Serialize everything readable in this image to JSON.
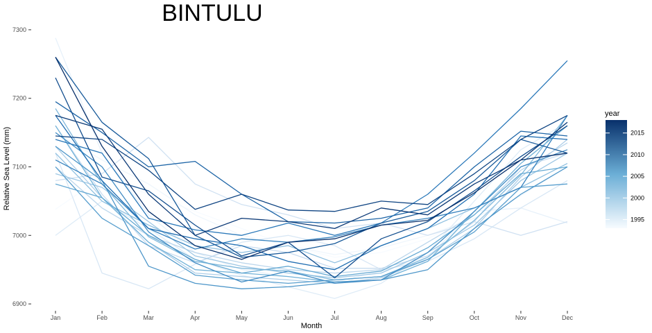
{
  "chart_data": {
    "type": "line",
    "title": "BINTULU",
    "xlabel": "Month",
    "ylabel": "Relative Sea Level (mm)",
    "categories": [
      "Jan",
      "Feb",
      "Mar",
      "Apr",
      "May",
      "Jun",
      "Jul",
      "Aug",
      "Sep",
      "Oct",
      "Nov",
      "Dec"
    ],
    "yticks": [
      6900,
      7000,
      7100,
      7200,
      7300
    ],
    "ylim": [
      6893,
      7308
    ],
    "grid": false,
    "legend": {
      "title": "year",
      "position": "right",
      "type": "colorbar",
      "range": [
        1993,
        2018
      ],
      "ticks": [
        1995,
        2000,
        2005,
        2010,
        2015
      ],
      "color_low": "#f7fbff",
      "color_high": "#08306b"
    },
    "series": [
      {
        "year": 1993,
        "values": [
          7038,
          7085,
          7060,
          7035,
          7010,
          6985,
          6968,
          6975,
          6995,
          7030,
          7080,
          7120
        ]
      },
      {
        "year": 1994,
        "values": [
          7150,
          7110,
          7075,
          7030,
          7000,
          6985,
          6972,
          6982,
          7000,
          7025,
          7058,
          7100
        ]
      },
      {
        "year": 1995,
        "values": [
          7288,
          7120,
          7030,
          6975,
          6950,
          6940,
          6932,
          6948,
          6968,
          7035,
          7040,
          7018
        ]
      },
      {
        "year": 1996,
        "values": [
          7000,
          7050,
          7010,
          6965,
          6942,
          6925,
          6908,
          6930,
          6975,
          7050,
          7125,
          7165
        ]
      },
      {
        "year": 1997,
        "values": [
          7120,
          6945,
          6922,
          6958,
          6990,
          7000,
          6985,
          6950,
          6962,
          6995,
          7040,
          7080
        ]
      },
      {
        "year": 1998,
        "values": [
          7080,
          7090,
          7143,
          7075,
          7045,
          7030,
          7010,
          7018,
          7000,
          7020,
          7000,
          7020
        ]
      },
      {
        "year": 1999,
        "values": [
          7160,
          7060,
          6985,
          6960,
          6985,
          6975,
          6952,
          6952,
          6970,
          7020,
          7100,
          7120
        ]
      },
      {
        "year": 2000,
        "values": [
          7100,
          7040,
          7000,
          6975,
          6960,
          6950,
          6945,
          6950,
          6990,
          7030,
          7095,
          7135
        ]
      },
      {
        "year": 2001,
        "values": [
          7130,
          7055,
          6990,
          6945,
          6940,
          6935,
          6930,
          6938,
          6965,
          7010,
          7085,
          7140
        ]
      },
      {
        "year": 2002,
        "values": [
          7090,
          7070,
          7020,
          6970,
          6955,
          6945,
          6938,
          6945,
          6975,
          7015,
          7080,
          7120
        ]
      },
      {
        "year": 2003,
        "values": [
          7120,
          7050,
          7015,
          6985,
          6975,
          6985,
          6960,
          6985,
          7010,
          7040,
          7070,
          7105
        ]
      },
      {
        "year": 2004,
        "values": [
          7185,
          7075,
          6998,
          6962,
          6952,
          6948,
          6935,
          6940,
          6968,
          7022,
          7088,
          7175
        ]
      },
      {
        "year": 2005,
        "values": [
          7160,
          7055,
          6990,
          6950,
          6945,
          6940,
          6932,
          6935,
          6962,
          7035,
          7105,
          7160
        ]
      },
      {
        "year": 2006,
        "values": [
          7075,
          7055,
          7000,
          6965,
          6945,
          6955,
          6940,
          6948,
          6982,
          7030,
          7090,
          7100
        ]
      },
      {
        "year": 2007,
        "values": [
          7100,
          7025,
          6985,
          6942,
          6935,
          6930,
          6935,
          6940,
          6965,
          7005,
          7070,
          7075
        ]
      },
      {
        "year": 2008,
        "values": [
          7130,
          7080,
          6955,
          6930,
          6922,
          6925,
          6932,
          6935,
          6950,
          7010,
          7060,
          7100
        ]
      },
      {
        "year": 2009,
        "values": [
          7150,
          7100,
          7005,
          6960,
          6932,
          6948,
          6930,
          6935,
          6975,
          7035,
          7100,
          7125
        ]
      },
      {
        "year": 2010,
        "values": [
          7110,
          7075,
          7010,
          6980,
          6995,
          6990,
          6998,
          7015,
          7025,
          7040,
          7070,
          7175
        ]
      },
      {
        "year": 2011,
        "values": [
          7140,
          7120,
          7025,
          7008,
          7000,
          7018,
          7000,
          7018,
          7060,
          7120,
          7185,
          7255
        ]
      },
      {
        "year": 2012,
        "values": [
          7175,
          7080,
          7010,
          6995,
          6985,
          6962,
          6950,
          6985,
          7010,
          7060,
          7145,
          7140
        ]
      },
      {
        "year": 2013,
        "values": [
          7195,
          7150,
          7100,
          7108,
          7060,
          7020,
          7018,
          7025,
          7040,
          7100,
          7152,
          7145
        ]
      },
      {
        "year": 2014,
        "values": [
          7260,
          7165,
          7112,
          7000,
          6968,
          6975,
          6988,
          7018,
          7035,
          7080,
          7140,
          7120
        ]
      },
      {
        "year": 2015,
        "values": [
          7230,
          7085,
          7065,
          7015,
          6970,
          6990,
          6938,
          6995,
          7020,
          7065,
          7115,
          7160
        ]
      },
      {
        "year": 2016,
        "values": [
          7145,
          7140,
          7095,
          7038,
          7060,
          7037,
          7035,
          7050,
          7045,
          7090,
          7140,
          7175
        ]
      },
      {
        "year": 2017,
        "values": [
          7175,
          7155,
          7060,
          7000,
          7025,
          7020,
          7010,
          7040,
          7030,
          7075,
          7110,
          7165
        ]
      },
      {
        "year": 2018,
        "values": [
          7260,
          7130,
          7035,
          6985,
          6965,
          6990,
          6995,
          7015,
          7022,
          7062,
          7110,
          7120
        ]
      }
    ]
  }
}
